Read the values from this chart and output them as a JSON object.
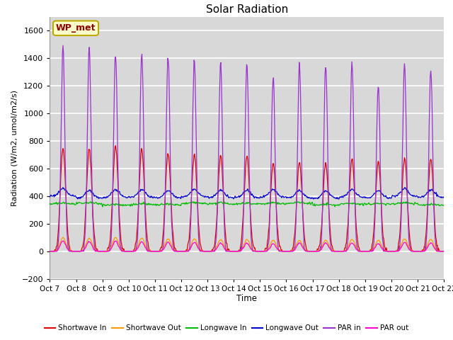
{
  "title": "Solar Radiation",
  "ylabel": "Radiation (W/m2, umol/m2/s)",
  "xlabel": "Time",
  "ylim": [
    -200,
    1700
  ],
  "yticks": [
    -200,
    0,
    200,
    400,
    600,
    800,
    1000,
    1200,
    1400,
    1600
  ],
  "plot_bg_color": "#d8d8d8",
  "grid_color": "#ffffff",
  "series_colors": {
    "shortwave_in": "#dd0000",
    "shortwave_out": "#ff9900",
    "longwave_in": "#00bb00",
    "longwave_out": "#0000cc",
    "par_in": "#9933cc",
    "par_out": "#ff00cc"
  },
  "legend_labels": [
    "Shortwave In",
    "Shortwave Out",
    "Longwave In",
    "Longwave Out",
    "PAR in",
    "PAR out"
  ],
  "xtick_labels": [
    "Oct 7",
    "Oct 8",
    "Oct 9",
    "Oct 10",
    "Oct 11",
    "Oct 12",
    "Oct 13",
    "Oct 14",
    "Oct 15",
    "Oct 16",
    "Oct 17",
    "Oct 18",
    "Oct 19",
    "Oct 20",
    "Oct 21",
    "Oct 22"
  ],
  "station_label": "WP_met",
  "num_days": 15,
  "points_per_day": 48
}
